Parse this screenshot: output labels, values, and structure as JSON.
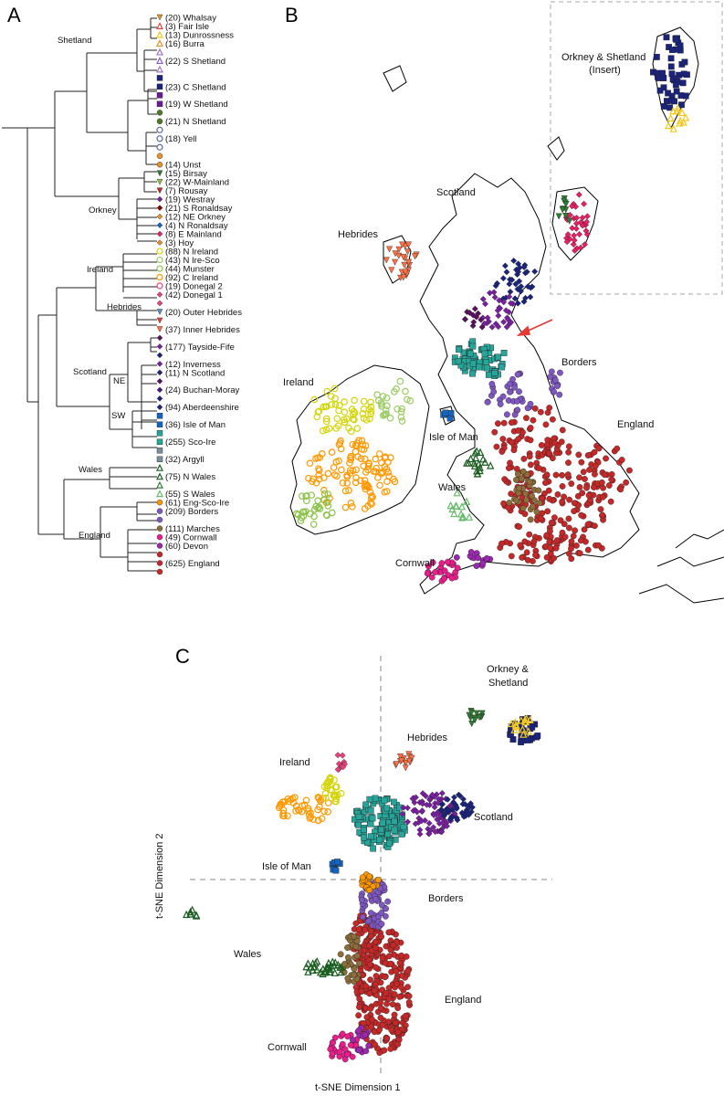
{
  "panels": {
    "a": "A",
    "b": "B",
    "c": "C"
  },
  "dendrogram": {
    "groups": [
      "Shetland",
      "Orkney",
      "Ireland",
      "Hebrides",
      "Scotland",
      "NE",
      "SW",
      "Wales",
      "England"
    ],
    "leaves": [
      {
        "label": "(20) Whalsay",
        "color": "#e8902a",
        "shape": "tri-down"
      },
      {
        "label": "(3) Fair Isle",
        "color": "#e84040",
        "shape": "tri-up"
      },
      {
        "label": "(13) Dunrossness",
        "color": "#f2c81e",
        "shape": "tri-up"
      },
      {
        "label": "(16) Burra",
        "color": "#e8902a",
        "shape": "tri-up"
      },
      {
        "label": "",
        "color": "#a070d0",
        "shape": "tri-up"
      },
      {
        "label": "(22) S Shetland",
        "color": "#8a5ad0",
        "shape": "tri-up"
      },
      {
        "label": "",
        "color": "#a070d0",
        "shape": "tri-up"
      },
      {
        "label": "",
        "color": "#1a237e",
        "shape": "square"
      },
      {
        "label": "(23) C Shetland",
        "color": "#1a237e",
        "shape": "square"
      },
      {
        "label": "",
        "color": "#6a1b9a",
        "shape": "square"
      },
      {
        "label": "(19) W Shetland",
        "color": "#6a1b9a",
        "shape": "square"
      },
      {
        "label": "",
        "color": "#4a7a2a",
        "shape": "dot"
      },
      {
        "label": "(21) N Shetland",
        "color": "#4a7a2a",
        "shape": "dot"
      },
      {
        "label": "",
        "color": "#5a6aa0",
        "shape": "circle"
      },
      {
        "label": "(18) Yell",
        "color": "#5a6aa0",
        "shape": "circle"
      },
      {
        "label": "",
        "color": "#5a6aa0",
        "shape": "circle"
      },
      {
        "label": "",
        "color": "#e8902a",
        "shape": "dot"
      },
      {
        "label": "(14) Unst",
        "color": "#e8902a",
        "shape": "dot"
      },
      {
        "label": "(15) Birsay",
        "color": "#2e7d32",
        "shape": "tri-down"
      },
      {
        "label": "(22) W-Mainland",
        "color": "#8bc34a",
        "shape": "tri-down"
      },
      {
        "label": "(7) Rousay",
        "color": "#c62828",
        "shape": "tri-down"
      },
      {
        "label": "(19) Westray",
        "color": "#7b1fa2",
        "shape": "diamond"
      },
      {
        "label": "(21) S Ronaldsay",
        "color": "#8b0000",
        "shape": "diamond"
      },
      {
        "label": "(12) NE Orkney",
        "color": "#e8902a",
        "shape": "diamond"
      },
      {
        "label": "(4) N Ronaldsay",
        "color": "#1565c0",
        "shape": "diamond"
      },
      {
        "label": "(8) E Mainland",
        "color": "#e91e63",
        "shape": "diamond"
      },
      {
        "label": "(3) Hoy",
        "color": "#e8902a",
        "shape": "diamond"
      },
      {
        "label": "(88) N Ireland",
        "color": "#d4d40a",
        "shape": "circle"
      },
      {
        "label": "(43) N Ire-Sco",
        "color": "#9ccc65",
        "shape": "circle"
      },
      {
        "label": "(44) Munster",
        "color": "#8bc34a",
        "shape": "circle"
      },
      {
        "label": "(92) C Ireland",
        "color": "#ff9800",
        "shape": "circle"
      },
      {
        "label": "(19) Donegal 2",
        "color": "#ec407a",
        "shape": "circle"
      },
      {
        "label": "(42) Donegal 1",
        "color": "#ec407a",
        "shape": "diamond"
      },
      {
        "label": "",
        "color": "#ec407a",
        "shape": "diamond"
      },
      {
        "label": "(20) Outer Hebrides",
        "color": "#5a8fbf",
        "shape": "tri-down"
      },
      {
        "label": "",
        "color": "#e84040",
        "shape": "tri-down"
      },
      {
        "label": "(37) Inner Hebrides",
        "color": "#ff7043",
        "shape": "tri-down"
      },
      {
        "label": "",
        "color": "#5a1060",
        "shape": "diamond"
      },
      {
        "label": "(177) Tayside-Fife",
        "color": "#7b1fa2",
        "shape": "diamond"
      },
      {
        "label": "",
        "color": "#1a237e",
        "shape": "diamond"
      },
      {
        "label": "(12) Inverness",
        "color": "#7b1fa2",
        "shape": "diamond"
      },
      {
        "label": "(11) N Scotland",
        "color": "#1a237e",
        "shape": "diamond"
      },
      {
        "label": "",
        "color": "#5a1060",
        "shape": "diamond"
      },
      {
        "label": "(24) Buchan-Moray",
        "color": "#4a148c",
        "shape": "diamond"
      },
      {
        "label": "",
        "color": "#1a237e",
        "shape": "diamond"
      },
      {
        "label": "(94) Aberdeenshire",
        "color": "#1a237e",
        "shape": "diamond"
      },
      {
        "label": "",
        "color": "#1565c0",
        "shape": "square"
      },
      {
        "label": "(36) Isle of Man",
        "color": "#1565c0",
        "shape": "square"
      },
      {
        "label": "",
        "color": "#26a69a",
        "shape": "square"
      },
      {
        "label": "(255) Sco-Ire",
        "color": "#26a69a",
        "shape": "square"
      },
      {
        "label": "",
        "color": "#78909c",
        "shape": "square"
      },
      {
        "label": "(32) Argyll",
        "color": "#78909c",
        "shape": "square"
      },
      {
        "label": "",
        "color": "#1b5e20",
        "shape": "tri-up"
      },
      {
        "label": "(75) N Wales",
        "color": "#1b5e20",
        "shape": "tri-up"
      },
      {
        "label": "",
        "color": "#2e7d32",
        "shape": "tri-up"
      },
      {
        "label": "(55) S Wales",
        "color": "#66bb6a",
        "shape": "tri-up"
      },
      {
        "label": "(61) Eng-Sco-Ire",
        "color": "#ff9800",
        "shape": "dot"
      },
      {
        "label": "(209) Borders",
        "color": "#7e57c2",
        "shape": "dot"
      },
      {
        "label": "",
        "color": "#7e57c2",
        "shape": "dot"
      },
      {
        "label": "(111) Marches",
        "color": "#8d6e3a",
        "shape": "dot"
      },
      {
        "label": "(49) Cornwall",
        "color": "#e91e8c",
        "shape": "dot"
      },
      {
        "label": "(60) Devon",
        "color": "#9c27b0",
        "shape": "dot"
      },
      {
        "label": "",
        "color": "#c62828",
        "shape": "dot"
      },
      {
        "label": "(625) England",
        "color": "#c62828",
        "shape": "dot"
      },
      {
        "label": "",
        "color": "#c62828",
        "shape": "dot"
      }
    ]
  },
  "map": {
    "labels": [
      "Orkney & Shetland",
      "(Insert)",
      "Scotland",
      "Hebrides",
      "Borders",
      "Ireland",
      "Isle of Man",
      "England",
      "Wales",
      "Cornwall"
    ]
  },
  "tsne": {
    "labels": [
      "Orkney &",
      "Shetland",
      "Hebrides",
      "Ireland",
      "Scotland",
      "Isle of Man",
      "Borders",
      "Wales",
      "England",
      "Cornwall"
    ],
    "x_axis": "t-SNE Dimension 1",
    "y_axis": "t-SNE Dimension 2"
  },
  "colors": {
    "england": "#c62828",
    "ireland": "#ff9800",
    "scotland": "#7b1fa2",
    "aberdeen": "#1a237e",
    "scoire": "#26a69a",
    "wales": "#1b5e20",
    "cornwall": "#e91e8c",
    "isleofman": "#1565c0",
    "borders": "#7e57c2",
    "marches": "#8d6e3a"
  }
}
